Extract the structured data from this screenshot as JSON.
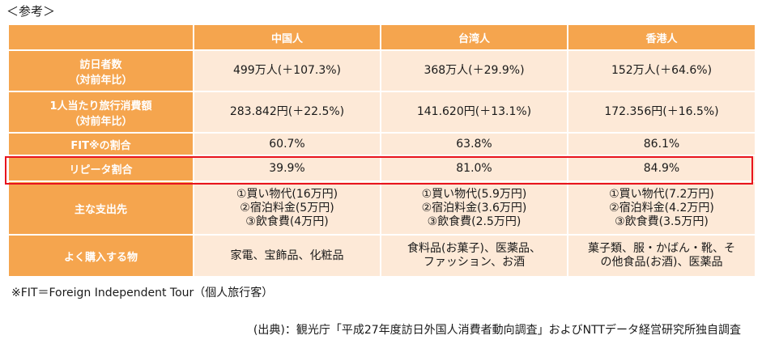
{
  "ref_label": "＜参考＞",
  "table": {
    "columns": [
      "",
      "中国人",
      "台湾人",
      "香港人"
    ],
    "rows": [
      {
        "label_lines": [
          "訪日者数",
          "（対前年比）"
        ],
        "cells": [
          [
            "499万人(＋107.3%)"
          ],
          [
            "368万人(＋29.9%)"
          ],
          [
            "152万人(＋64.6%)"
          ]
        ]
      },
      {
        "label_lines": [
          "1人当たり旅行消費額",
          "（対前年比）"
        ],
        "cells": [
          [
            "283.842円(＋22.5%)"
          ],
          [
            "141.620円(＋13.1%)"
          ],
          [
            "172.356円(＋16.5%)"
          ]
        ]
      },
      {
        "label_lines": [
          "FIT※の割合"
        ],
        "cells": [
          [
            "60.7%"
          ],
          [
            "63.8%"
          ],
          [
            "86.1%"
          ]
        ]
      },
      {
        "label_lines": [
          "リピータ割合"
        ],
        "cells": [
          [
            "39.9%"
          ],
          [
            "81.0%"
          ],
          [
            "84.9%"
          ]
        ]
      },
      {
        "label_lines": [
          "主な支出先"
        ],
        "cells": [
          [
            "①買い物代(16万円)",
            "②宿泊料金(5万円)",
            "③飲食費(4万円)"
          ],
          [
            "①買い物代(5.9万円)",
            "②宿泊料金(3.6万円)",
            "③飲食費(2.5万円)"
          ],
          [
            "①買い物代(7.2万円)",
            "②宿泊料金(4.2万円)",
            "③飲食費(3.5万円)"
          ]
        ]
      },
      {
        "label_lines": [
          "よく購入する物"
        ],
        "cells": [
          [
            "家電、宝飾品、化粧品"
          ],
          [
            "食料品(お菓子)、医薬品、",
            "ファッション、お酒"
          ],
          [
            "菓子類、服・かばん・靴、そ",
            "の他食品(お酒)、医薬品"
          ]
        ]
      }
    ]
  },
  "footnote": "※FIT＝Foreign Independent Tour（個人旅行客）",
  "source": "(出典)：観光庁「平成27年度訪日外国人消費者動向調査」およびNTTデータ経営研究所独自調査",
  "colors": {
    "header_bg": "#f5a54e",
    "cell_bg": "#fde9d7",
    "highlight": "#e8131d"
  }
}
